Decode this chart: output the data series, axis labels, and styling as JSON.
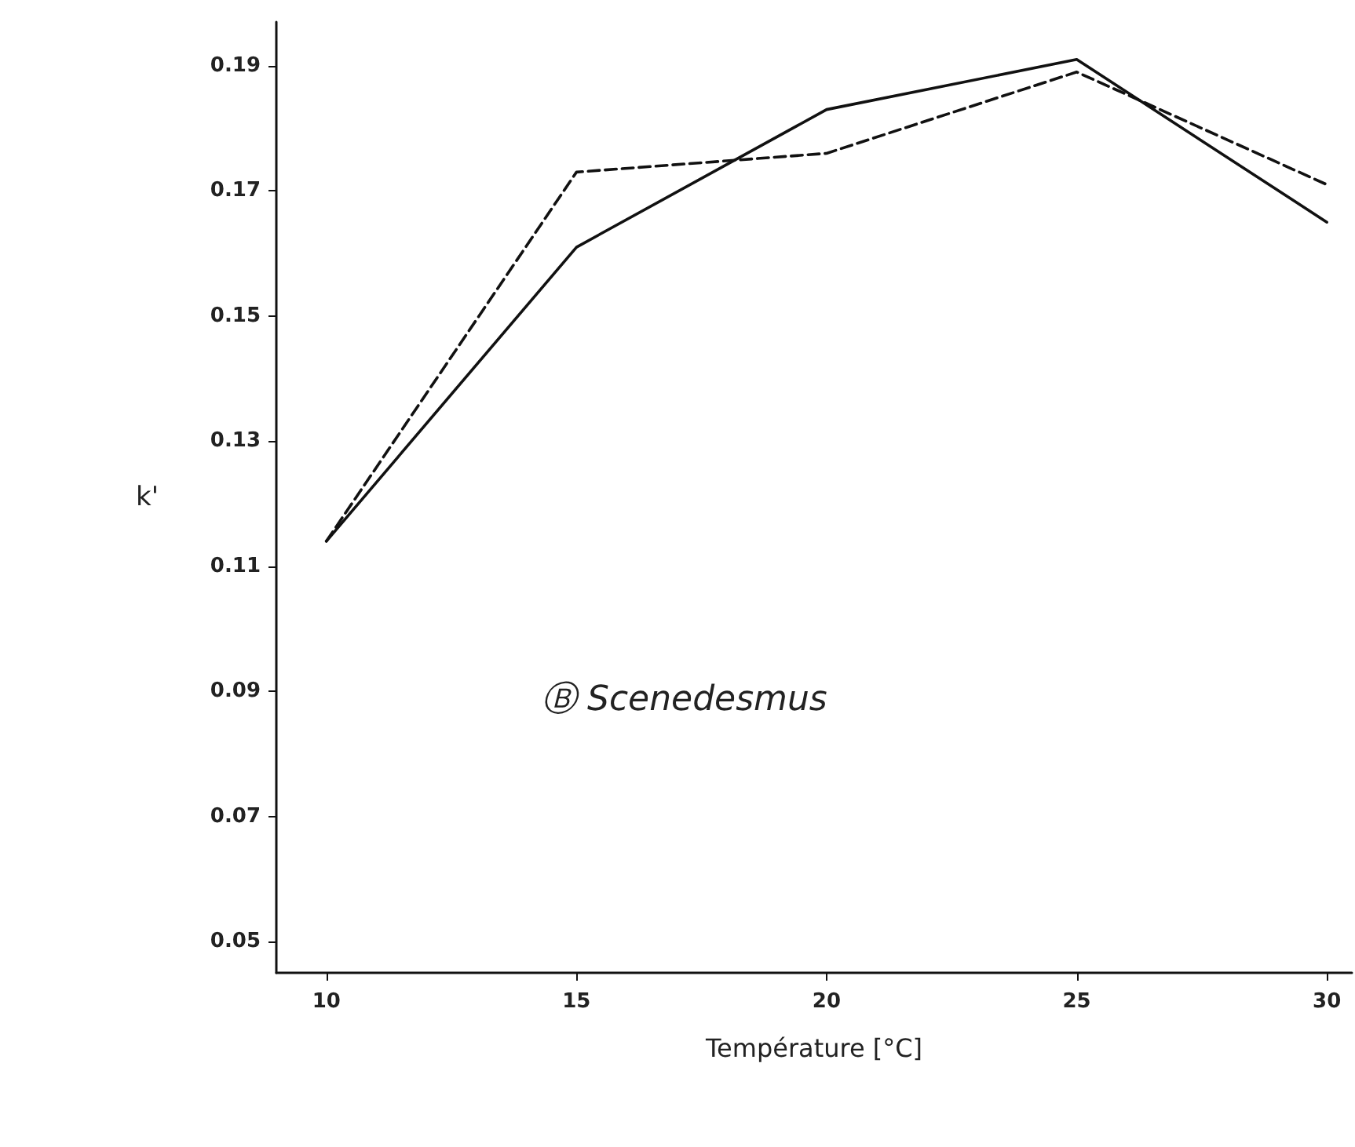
{
  "chart_data": {
    "type": "line",
    "xlabel": "Température [°C]",
    "ylabel": "k'",
    "annotations": [
      "Ⓑ Scenedesmus"
    ],
    "x": [
      10,
      15,
      20,
      25,
      30
    ],
    "series": [
      {
        "color": "#111111",
        "line_style": "solid",
        "values": [
          0.114,
          0.161,
          0.183,
          0.191,
          0.165
        ]
      },
      {
        "color": "#111111",
        "line_style": "dashed",
        "values": [
          0.114,
          0.173,
          0.176,
          0.189,
          0.171
        ]
      }
    ],
    "xlim": [
      9,
      30.5
    ],
    "xticks": [
      10,
      15,
      20,
      25,
      30
    ],
    "ylim": [
      0.045,
      0.197
    ],
    "yticks": [
      0.05,
      0.07,
      0.09,
      0.11,
      0.13,
      0.15,
      0.17,
      0.19
    ],
    "grid": false,
    "marker": "none"
  }
}
